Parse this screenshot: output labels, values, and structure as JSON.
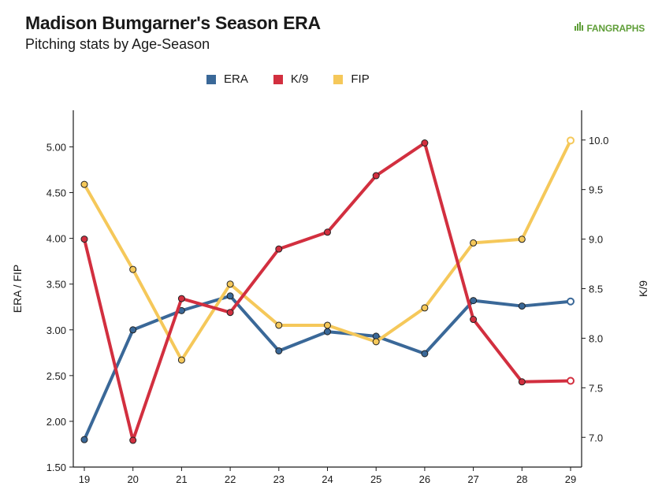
{
  "header": {
    "title": "Madison Bumgarner's Season ERA",
    "subtitle": "Pitching stats by Age-Season",
    "brand": "FANGRAPHS"
  },
  "colors": {
    "ERA": "#3a6898",
    "K/9": "#d22f3f",
    "FIP": "#f5c85a"
  },
  "chart_data": {
    "type": "line",
    "title": "Madison Bumgarner's Season ERA",
    "subtitle": "Pitching stats by Age-Season",
    "x": [
      19,
      20,
      21,
      22,
      23,
      24,
      25,
      26,
      27,
      28,
      29
    ],
    "x_ticks": [
      "19",
      "20",
      "21",
      "22",
      "23",
      "24",
      "25",
      "26",
      "27",
      "28",
      "29"
    ],
    "y_left": {
      "label": "ERA / FIP",
      "range": [
        1.5,
        5.4
      ],
      "ticks": [
        "1.50",
        "2.00",
        "2.50",
        "3.00",
        "3.50",
        "4.00",
        "4.50",
        "5.00"
      ]
    },
    "y_right": {
      "label": "K/9",
      "range": [
        6.7,
        10.3
      ],
      "ticks": [
        "7.0",
        "7.5",
        "8.0",
        "8.5",
        "9.0",
        "9.5",
        "10.0"
      ]
    },
    "legend_position": "top-center",
    "grid": false,
    "series": [
      {
        "name": "ERA",
        "axis": "left",
        "values": [
          1.8,
          3.0,
          3.21,
          3.37,
          2.77,
          2.98,
          2.93,
          2.74,
          3.32,
          3.26,
          3.31
        ]
      },
      {
        "name": "K/9",
        "axis": "right",
        "values": [
          9.0,
          6.97,
          8.4,
          8.26,
          8.9,
          9.07,
          9.64,
          9.97,
          8.19,
          7.56,
          7.57
        ]
      },
      {
        "name": "FIP",
        "axis": "left",
        "values": [
          4.59,
          3.66,
          2.67,
          3.5,
          3.05,
          3.05,
          2.87,
          3.24,
          3.95,
          3.99,
          5.07
        ]
      }
    ]
  }
}
